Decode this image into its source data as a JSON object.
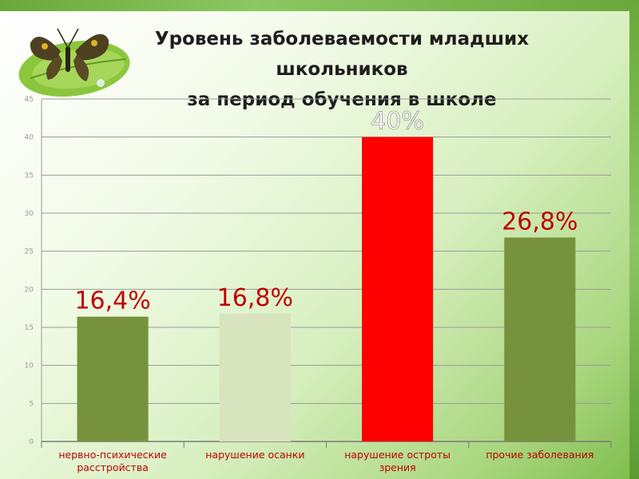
{
  "page": {
    "title_lines": [
      "Уровень заболеваемости младших",
      "школьников",
      "за период обучения в школе"
    ]
  },
  "chart_data": {
    "type": "bar",
    "title": "Уровень заболеваемости младших школьников за период обучения в школе",
    "categories": [
      [
        "нервно-психические",
        "расстройства"
      ],
      [
        "нарушение осанки"
      ],
      [
        "нарушение остроты",
        "зрения"
      ],
      [
        "прочие заболевания"
      ]
    ],
    "values": [
      16.4,
      16.8,
      40,
      26.8
    ],
    "data_labels": [
      "16,4%",
      "16,8%",
      "40%",
      "26,8%"
    ],
    "bar_colors": [
      "#77923c",
      "#d7e4bd",
      "#ff0000",
      "#77923c"
    ],
    "label_colors": [
      "#c00000",
      "#c00000",
      "#ffffff",
      "#c00000"
    ],
    "ylim": [
      0,
      45
    ],
    "yticks": [
      0,
      5,
      10,
      15,
      20,
      25,
      30,
      35,
      40,
      45
    ],
    "ytick_labels": [
      "0",
      "5",
      "10",
      "15",
      "20",
      "25",
      "30",
      "35",
      "40",
      "45"
    ],
    "grid": true,
    "legend": "none",
    "xlabel": "",
    "ylabel": ""
  },
  "colors": {
    "gridline": "#9a9a9a",
    "category_text": "#c00000",
    "tick_text": "#9a9a9a"
  },
  "icons": {
    "decoration": "butterfly-on-leaf-icon"
  }
}
